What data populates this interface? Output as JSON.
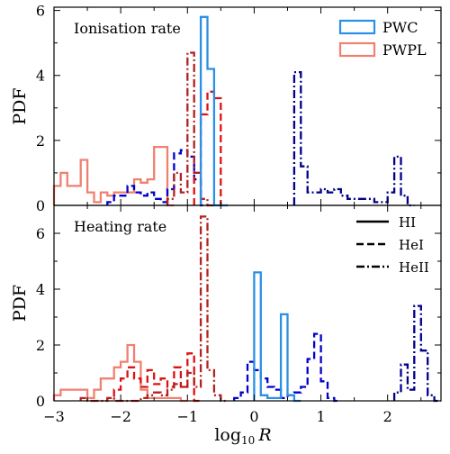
{
  "figure": {
    "shared_xlabel_base": "log",
    "shared_xlabel_sub": "10",
    "shared_xlabel_var": "R"
  },
  "chart_data": [
    {
      "type": "step-histogram",
      "title": "Ionisation rate",
      "xlabel": "",
      "ylabel": "PDF",
      "xlim": [
        -3,
        2.8
      ],
      "ylim": [
        0,
        6.1
      ],
      "yticks": [
        0,
        2,
        4,
        6
      ],
      "xticks": [
        -3,
        -2,
        -1,
        0,
        1,
        2
      ],
      "show_xticklabels": false,
      "legend": {
        "placement": "top-right",
        "entries": [
          {
            "label": "PWC",
            "color": "#2a8fe6",
            "linestyle": "solid"
          },
          {
            "label": "PWPL",
            "color": "#f08070",
            "linestyle": "solid"
          }
        ]
      },
      "series": [
        {
          "name": "PWPL",
          "color": "#f08070",
          "linestyle": "solid",
          "x": [
            -3.0,
            -2.9,
            -2.8,
            -2.7,
            -2.6,
            -2.5,
            -2.4,
            -2.3,
            -2.2,
            -2.1,
            -2.0,
            -1.9,
            -1.8,
            -1.7,
            -1.6,
            -1.5,
            -1.4,
            -1.3
          ],
          "y": [
            0.6,
            1.0,
            0.6,
            0.6,
            1.4,
            0.4,
            0.1,
            0.4,
            0.3,
            0.4,
            0.4,
            0.4,
            0.8,
            0.7,
            0.8,
            1.8,
            1.8,
            0
          ]
        },
        {
          "name": "PWC-HeI",
          "color": "#0000cc",
          "linestyle": "dashed",
          "x": [
            -2.2,
            -2.1,
            -2.0,
            -1.9,
            -1.8,
            -1.7,
            -1.6,
            -1.5,
            -1.4,
            -1.3,
            -1.2,
            -1.1,
            -1.0,
            -0.9,
            -0.8
          ],
          "y": [
            0.1,
            0.3,
            0.3,
            0.6,
            0.4,
            0.3,
            0.4,
            0.2,
            0.1,
            0.5,
            1.6,
            1.7,
            1.5,
            0.8,
            0
          ]
        },
        {
          "name": "PWPL-HeI",
          "color": "#dd1111",
          "linestyle": "dashed",
          "x": [
            -0.9,
            -0.8,
            -0.7,
            -0.6,
            -0.5
          ],
          "y": [
            1.0,
            2.8,
            3.5,
            3.3,
            0
          ]
        },
        {
          "name": "PWPL-HeII",
          "color": "#b22222",
          "linestyle": "dashdot",
          "x": [
            -1.3,
            -1.2,
            -1.1,
            -1.0,
            -0.9,
            -0.8,
            -0.7
          ],
          "y": [
            0.2,
            1.0,
            0.4,
            4.7,
            1.0,
            0.2,
            0
          ]
        },
        {
          "name": "PWC-HI",
          "color": "#2a8fe6",
          "linestyle": "solid",
          "x": [
            -0.8,
            -0.7,
            -0.6,
            -0.5
          ],
          "y": [
            5.8,
            4.2,
            0,
            0
          ]
        },
        {
          "name": "PWC-HeII",
          "color": "#00008b",
          "linestyle": "dashdot",
          "x": [
            0.6,
            0.7,
            0.8,
            0.9,
            1.0,
            1.1,
            1.2,
            1.3,
            1.4,
            1.5,
            1.6,
            1.7,
            1.8,
            1.9,
            2.0,
            2.1,
            2.2,
            2.3
          ],
          "y": [
            4.1,
            1.2,
            0.4,
            0.4,
            0.5,
            0.4,
            0.5,
            0.3,
            0.2,
            0.2,
            0.2,
            0.2,
            0.1,
            0.1,
            0.4,
            1.5,
            0.3,
            0
          ]
        }
      ]
    },
    {
      "type": "step-histogram",
      "title": "Heating rate",
      "xlabel": "",
      "ylabel": "PDF",
      "xlim": [
        -3,
        2.8
      ],
      "ylim": [
        0,
        7.0
      ],
      "yticks": [
        0,
        2,
        4,
        6
      ],
      "xticks": [
        -3,
        -2,
        -1,
        0,
        1,
        2
      ],
      "show_xticklabels": true,
      "legend": {
        "placement": "top-right",
        "entries": [
          {
            "label": "HI",
            "color": "#000000",
            "linestyle": "solid"
          },
          {
            "label": "HeI",
            "color": "#000000",
            "linestyle": "dashed"
          },
          {
            "label": "HeII",
            "color": "#000000",
            "linestyle": "dashdot"
          }
        ]
      },
      "series": [
        {
          "name": "PWPL",
          "color": "#f08070",
          "linestyle": "solid",
          "x": [
            -3.0,
            -2.9,
            -2.8,
            -2.7,
            -2.6,
            -2.5,
            -2.4,
            -2.3,
            -2.2,
            -2.1,
            -2.0,
            -1.9,
            -1.8,
            -1.7,
            -1.6,
            -1.5,
            -1.4,
            -1.3,
            -1.2,
            -1.1
          ],
          "y": [
            0.2,
            0.4,
            0.4,
            0.4,
            0.4,
            0.1,
            0.4,
            0.8,
            0.8,
            1.2,
            1.4,
            2.0,
            1.4,
            0.4,
            0.1,
            0.1,
            0.1,
            0.1,
            0.1,
            0
          ]
        },
        {
          "name": "PWC-HeI",
          "color": "#0000cc",
          "linestyle": "dashed",
          "x": [
            -0.3,
            -0.2,
            -0.1,
            0.0,
            0.1,
            0.2,
            0.3,
            0.4,
            0.5,
            0.6,
            0.7,
            0.8,
            0.9,
            1.0,
            1.1,
            1.2
          ],
          "y": [
            0.1,
            0.3,
            1.4,
            1.1,
            0.8,
            0.5,
            0.4,
            0.1,
            0.2,
            0.3,
            0.5,
            1.5,
            2.4,
            0.7,
            0.1,
            0
          ]
        },
        {
          "name": "PWPL-HeI",
          "color": "#dd1111",
          "linestyle": "dashed",
          "x": [
            -2.2,
            -2.1,
            -2.0,
            -1.9,
            -1.8,
            -1.7,
            -1.6,
            -1.5,
            -1.4,
            -1.3,
            -1.2,
            -1.1,
            -1.0,
            -0.9
          ],
          "y": [
            0.1,
            0.4,
            0.8,
            1.2,
            0.8,
            0.5,
            1.1,
            0.6,
            0.8,
            0.5,
            1.2,
            0.5,
            1.7,
            0
          ]
        },
        {
          "name": "PWPL-HeII",
          "color": "#b22222",
          "linestyle": "dashdot",
          "x": [
            -2.6,
            -2.5,
            -2.3,
            -2.2,
            -2.1,
            -2.0,
            -1.9,
            -1.8,
            -1.7,
            -1.6,
            -1.5,
            -1.4,
            -1.3,
            -1.2,
            -1.1,
            -1.0,
            -0.9,
            -0.8,
            -0.7,
            -0.6,
            -0.5
          ],
          "y": [
            0.1,
            0.0,
            0.0,
            0.1,
            0.0,
            0.0,
            0.0,
            0.0,
            0.1,
            0.2,
            0.3,
            0.2,
            0.4,
            0.6,
            0.5,
            1.0,
            0.5,
            6.6,
            1.1,
            0.2,
            0
          ]
        },
        {
          "name": "PWC-HI",
          "color": "#2a8fe6",
          "linestyle": "solid",
          "x": [
            0.0,
            0.1,
            0.2,
            0.3,
            0.4,
            0.5,
            0.6
          ],
          "y": [
            4.6,
            0.2,
            0.1,
            0.1,
            3.1,
            0.2,
            0
          ]
        },
        {
          "name": "PWC-HeII",
          "color": "#00008b",
          "linestyle": "dashdot",
          "x": [
            2.1,
            2.2,
            2.3,
            2.4,
            2.5,
            2.6,
            2.7
          ],
          "y": [
            0.3,
            1.3,
            0.4,
            3.4,
            1.8,
            0.2,
            0
          ]
        }
      ]
    }
  ]
}
